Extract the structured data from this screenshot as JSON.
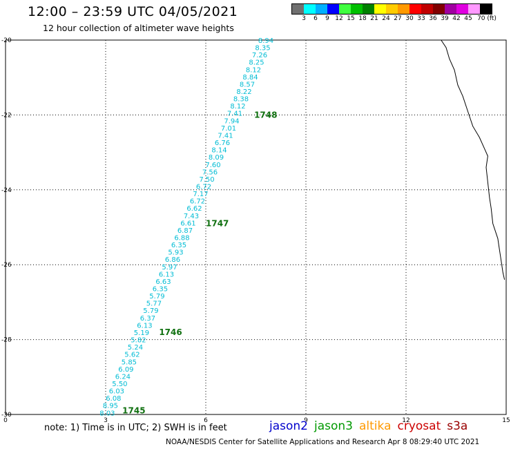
{
  "header": {
    "title": "12:00 – 23:59 UTC 04/05/2021",
    "subtitle": "12 hour collection of altimeter wave heights"
  },
  "colorbar": {
    "colors": [
      "#707070",
      "#00ffff",
      "#00b0ff",
      "#0000ff",
      "#40ff40",
      "#00c000",
      "#008000",
      "#ffff00",
      "#ffcc00",
      "#ff9900",
      "#ff0000",
      "#c00000",
      "#800000",
      "#a000a0",
      "#e000e0",
      "#ff99ff",
      "#000000"
    ],
    "labels": [
      "3",
      "6",
      "9",
      "12",
      "15",
      "18",
      "21",
      "24",
      "27",
      "30",
      "33",
      "36",
      "39",
      "42",
      "45",
      "70 (ft)"
    ]
  },
  "map": {
    "lat_range": [
      -30,
      -20
    ],
    "lon_range": [
      0,
      15
    ],
    "lat_labels": [
      "-20",
      "-22",
      "-24",
      "-26",
      "-28",
      "-30"
    ],
    "lon_labels": [
      "0",
      "3",
      "6",
      "9",
      "12",
      "15"
    ],
    "track_color": "#00bcd4",
    "time_label_color": "#107010",
    "swh_labels": [
      "8.94",
      "8.35",
      "7.26",
      "8.25",
      "8.12",
      "8.84",
      "8.57",
      "8.22",
      "8.38",
      "8.12",
      "7.41",
      "7.94",
      "7.01",
      "7.41",
      "6.76",
      "8.14",
      "8.09",
      "7.60",
      "7.56",
      "7.50",
      "6.72",
      "7.17",
      "6.72",
      "6.62",
      "7.43",
      "6.61",
      "6.87",
      "6.88",
      "6.35",
      "5.93",
      "6.86",
      "5.97",
      "6.13",
      "6.63",
      "6.35",
      "5.79",
      "5.77",
      "5.79",
      "6.37",
      "6.13",
      "5.19",
      "5.82",
      "5.24",
      "5.62",
      "5.85",
      "6.09",
      "6.24",
      "5.50",
      "6.03",
      "6.08",
      "8.95",
      "8.03"
    ],
    "time_labels": [
      {
        "text": "1748",
        "lat": -22.0,
        "lon": 7.45
      },
      {
        "text": "1747",
        "lat": -24.9,
        "lon": 6.0
      },
      {
        "text": "1746",
        "lat": -27.8,
        "lon": 4.6
      },
      {
        "text": "1745",
        "lat": -29.9,
        "lon": 3.5
      }
    ],
    "coastline": [
      [
        -20.0,
        13.05
      ],
      [
        -20.2,
        13.2
      ],
      [
        -20.5,
        13.3
      ],
      [
        -20.8,
        13.45
      ],
      [
        -21.2,
        13.55
      ],
      [
        -21.5,
        13.7
      ],
      [
        -21.9,
        13.85
      ],
      [
        -22.3,
        14.0
      ],
      [
        -22.6,
        14.2
      ],
      [
        -22.9,
        14.35
      ],
      [
        -23.1,
        14.45
      ],
      [
        -23.4,
        14.4
      ],
      [
        -23.8,
        14.45
      ],
      [
        -24.2,
        14.5
      ],
      [
        -24.5,
        14.55
      ],
      [
        -24.9,
        14.6
      ],
      [
        -25.3,
        14.75
      ],
      [
        -25.6,
        14.8
      ],
      [
        -25.9,
        14.85
      ],
      [
        -26.2,
        14.9
      ],
      [
        -26.4,
        14.95
      ]
    ]
  },
  "footer": {
    "note": "note:  1) Time is in UTC;  2) SWH is in feet",
    "missions": [
      {
        "name": "jason2",
        "color": "#0000cc"
      },
      {
        "name": "jason3",
        "color": "#009900"
      },
      {
        "name": "altika",
        "color": "#ff9900"
      },
      {
        "name": "cryosat",
        "color": "#cc0000"
      },
      {
        "name": "s3a",
        "color": "#990000"
      }
    ],
    "credit": "NOAA/NESDIS Center for Satellite Applications and Research     Apr  8 08:29:40 UTC 2021"
  }
}
